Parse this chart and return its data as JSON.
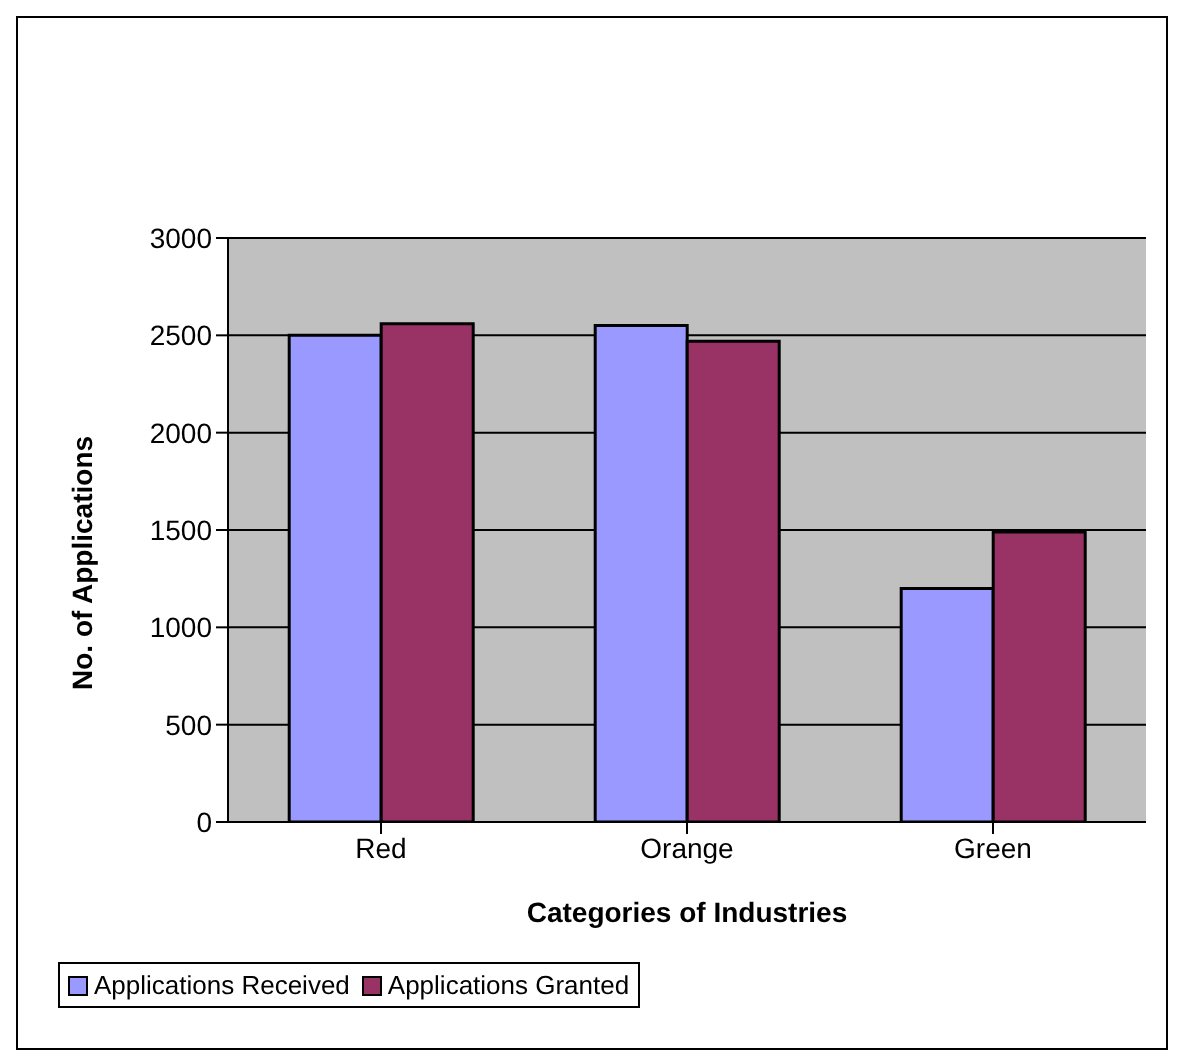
{
  "chart_data": {
    "type": "bar",
    "xlabel": "Categories of Industries",
    "ylabel": "No. of Applications",
    "categories": [
      "Red",
      "Orange",
      "Green"
    ],
    "series": [
      {
        "name": "Applications Received",
        "color": "#9999ff",
        "values": [
          2500,
          2550,
          1200
        ]
      },
      {
        "name": "Applications Granted",
        "color": "#993366",
        "values": [
          2560,
          2470,
          1490
        ]
      }
    ],
    "ylim": [
      0,
      3000
    ],
    "yticks": [
      0,
      500,
      1000,
      1500,
      2000,
      2500,
      3000
    ],
    "grid": "y",
    "legend": "bottom"
  }
}
